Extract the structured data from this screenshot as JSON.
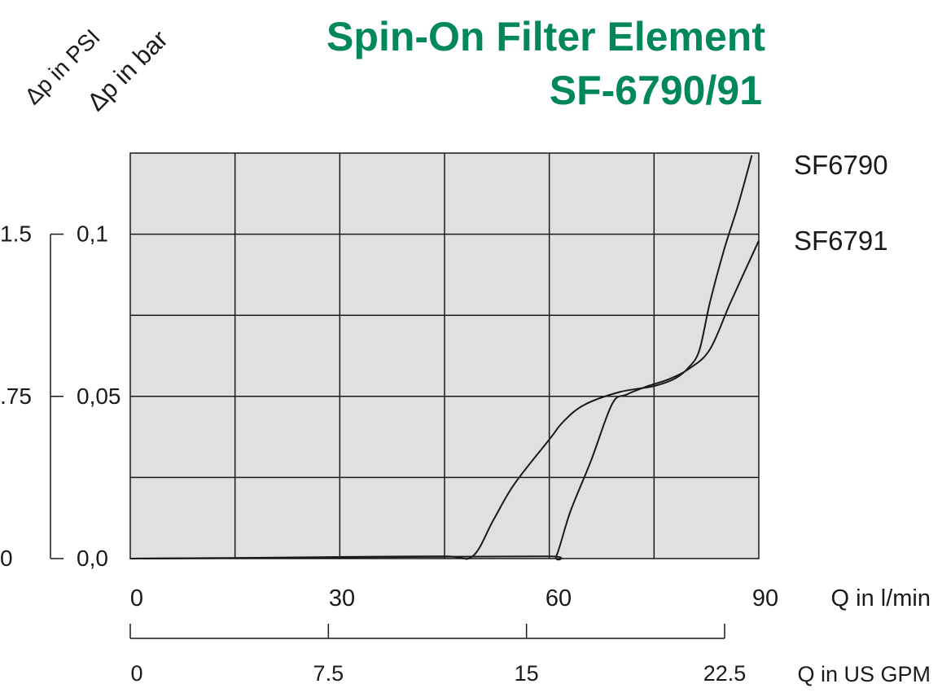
{
  "title_line1": "Spin-On Filter Element",
  "title_line2": "SF-6790/91",
  "colors": {
    "title": "#00875a",
    "plot_bg": "#e0e0e0",
    "grid": "#1a1a1a",
    "curve": "#1a1a1a"
  },
  "chart_data": {
    "type": "line",
    "grid": true,
    "legend": "right",
    "y_label_psi": "Δp in PSI",
    "y_label_bar": "Δp in bar",
    "y_ticks_psi": [
      "0",
      ".75",
      "1.5"
    ],
    "y_ticks_bar": [
      "0,0",
      "0,05",
      "0,1"
    ],
    "y_tick_values_bar": [
      0.0,
      0.05,
      0.1
    ],
    "ylim_bar": [
      0,
      0.125
    ],
    "x_label_lmin": "Q in l/min",
    "x_ticks_lmin": [
      "0",
      "30",
      "60",
      "90"
    ],
    "x_tick_values_lmin": [
      0,
      30,
      60,
      90
    ],
    "xlim_lmin": [
      0,
      90
    ],
    "x_label_gpm": "Q in US GPM",
    "x_ticks_gpm": [
      "0",
      "7.5",
      "15",
      "22.5"
    ],
    "x_tick_values_gpm": [
      0,
      7.5,
      15,
      22.5
    ],
    "xlim_gpm": [
      0,
      22.5
    ],
    "series": [
      {
        "name": "SF6790",
        "x": [
          0,
          15,
          30,
          45,
          49,
          52,
          55,
          60,
          62,
          65,
          70,
          75,
          78,
          80,
          81.5,
          83,
          85,
          87,
          89
        ],
        "y": [
          0,
          0.0002,
          0.0005,
          0.0007,
          0.0007,
          0.0119,
          0.023,
          0.0367,
          0.0422,
          0.0474,
          0.0513,
          0.0532,
          0.0555,
          0.059,
          0.0643,
          0.079,
          0.095,
          0.1087,
          0.1243
        ]
      },
      {
        "name": "SF6791",
        "x": [
          0,
          20,
          40,
          60,
          61,
          63,
          66,
          69,
          71,
          74,
          77,
          80,
          83,
          86,
          90
        ],
        "y": [
          0,
          0.0002,
          0.0005,
          0.0007,
          0.0007,
          0.0144,
          0.0303,
          0.0477,
          0.0505,
          0.0531,
          0.0552,
          0.0585,
          0.0645,
          0.0792,
          0.098
        ]
      }
    ]
  }
}
